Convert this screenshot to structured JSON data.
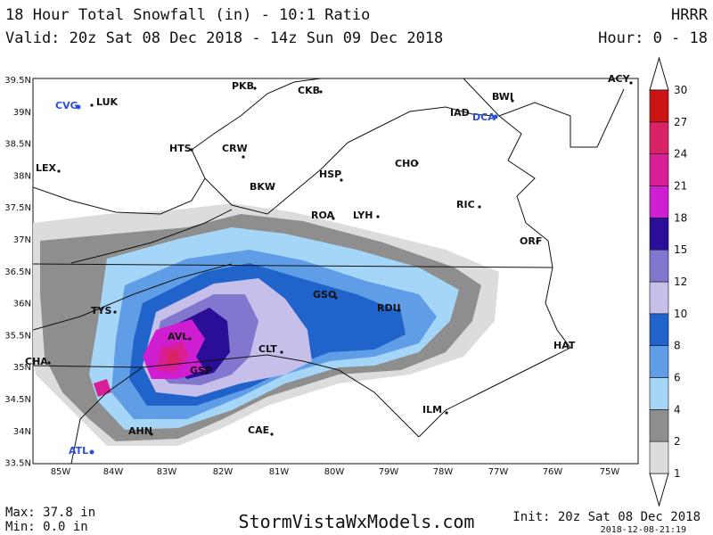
{
  "header": {
    "title": "18 Hour Total Snowfall (in) - 10:1 Ratio",
    "model": "HRRR",
    "valid": "Valid: 20z Sat 08 Dec 2018 - 14z Sun 09 Dec 2018",
    "hours": "Hour: 0 - 18"
  },
  "map": {
    "lat_labels": [
      "39.5N",
      "39N",
      "38.5N",
      "38N",
      "37.5N",
      "37N",
      "36.5N",
      "36N",
      "35.5N",
      "35N",
      "34.5N",
      "34N",
      "33.5N"
    ],
    "lon_labels": [
      "85W",
      "84W",
      "83W",
      "82W",
      "81W",
      "80W",
      "79W",
      "78W",
      "77W",
      "76W",
      "75W"
    ],
    "cities": [
      "CVG",
      "LUK",
      "PKB",
      "CKB",
      "BWI",
      "ACY",
      "IAD",
      "DCA",
      "HTS",
      "CRW",
      "LEX",
      "CHO",
      "HSP",
      "BKW",
      "RIC",
      "ROA",
      "LYH",
      "ORF",
      "GSO",
      "RDU",
      "TYS",
      "AVL",
      "CLT",
      "HAT",
      "CHA",
      "GSP",
      "ILM",
      "AHN",
      "CAE",
      "ATL"
    ]
  },
  "legend": {
    "levels": [
      1,
      2,
      4,
      6,
      8,
      10,
      12,
      15,
      18,
      21,
      24,
      27,
      30
    ],
    "colors": [
      "#dcdcdc",
      "#8e8e8e",
      "#a6d6f7",
      "#5f9de6",
      "#1f63cb",
      "#c6bfea",
      "#8277cf",
      "#2a0e98",
      "#cf1ed2",
      "#d91f98",
      "#d92366",
      "#cc1414"
    ]
  },
  "footer": {
    "max": "Max: 37.8 in",
    "min": "Min: 0.0 in",
    "site": "StormVistaWxModels.com",
    "init": "Init: 20z Sat 08 Dec 2018",
    "stamp": "2018-12-08-21:19"
  }
}
